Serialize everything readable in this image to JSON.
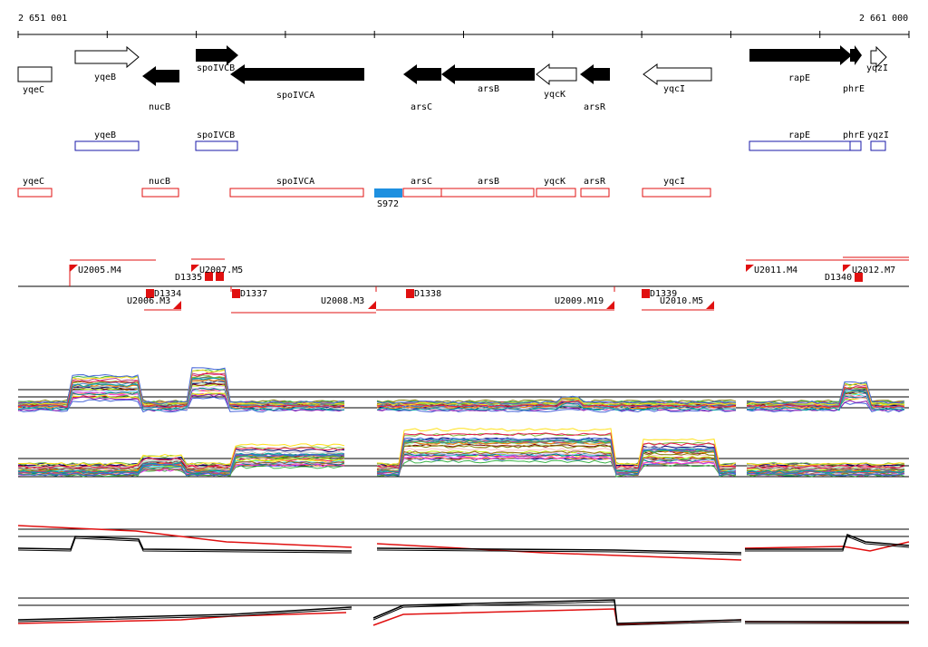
{
  "coordinates": {
    "start": "2 651 001",
    "end": "2 661 000"
  },
  "colors": {
    "gene_fill": "#000000",
    "gene_outline": "#000000",
    "blue_annotation": "#1a1aa8",
    "red_annotation": "#e01010",
    "marker_blue": "#1e90e0",
    "track_red": "#e01010",
    "track_black": "#000000"
  },
  "genes": [
    {
      "name": "yqeC",
      "strand": "+",
      "filled": false
    },
    {
      "name": "yqeB",
      "strand": "+",
      "filled": false
    },
    {
      "name": "nucB",
      "strand": "-",
      "filled": true
    },
    {
      "name": "spoIVCB",
      "strand": "+",
      "filled": true
    },
    {
      "name": "spoIVCA",
      "strand": "-",
      "filled": true
    },
    {
      "name": "arsC",
      "strand": "-",
      "filled": true
    },
    {
      "name": "arsB",
      "strand": "-",
      "filled": true
    },
    {
      "name": "yqcK",
      "strand": "-",
      "filled": false
    },
    {
      "name": "arsR",
      "strand": "-",
      "filled": true
    },
    {
      "name": "yqcI",
      "strand": "-",
      "filled": false
    },
    {
      "name": "rapE",
      "strand": "+",
      "filled": true
    },
    {
      "name": "phrE",
      "strand": "+",
      "filled": true
    },
    {
      "name": "yqzI",
      "strand": "+",
      "filled": false
    }
  ],
  "blue_track": [
    "yqeB",
    "spoIVCB",
    "rapE",
    "phrE",
    "yqzI"
  ],
  "red_track": [
    "yqeC",
    "nucB",
    "spoIVCA",
    "arsC",
    "arsB",
    "yqcK",
    "arsR",
    "yqcI"
  ],
  "marker": {
    "label": "S972"
  },
  "segments_above": [
    "U2005.M4",
    "U2007.M5",
    "D1335",
    "U2011.M4",
    "U2012.M7",
    "D1340"
  ],
  "segments_below": [
    "D1334",
    "U2006.M3",
    "D1337",
    "U2008.M3",
    "D1338",
    "U2009.M19",
    "D1339",
    "U2010.M5"
  ],
  "tracks": [
    {
      "name": "expression-panel-1",
      "type": "multi-line"
    },
    {
      "name": "expression-panel-2",
      "type": "multi-line"
    },
    {
      "name": "summary-panel-1",
      "series": [
        "red",
        "black"
      ]
    },
    {
      "name": "summary-panel-2",
      "series": [
        "red",
        "black"
      ]
    }
  ]
}
